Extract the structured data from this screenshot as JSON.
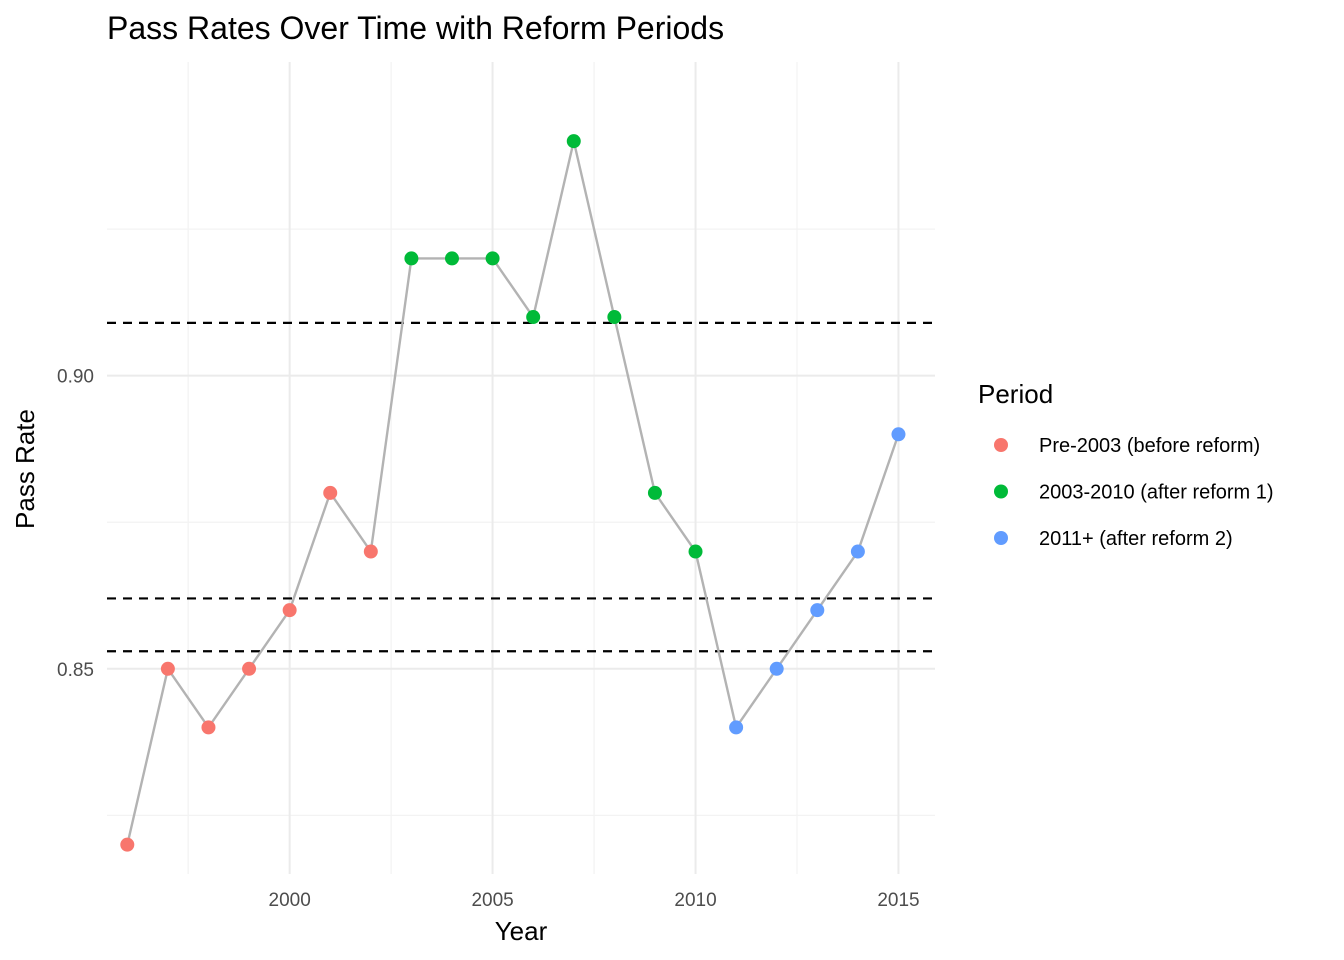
{
  "chart_data": {
    "type": "line",
    "title": "Pass Rates Over Time with Reform Periods",
    "xlabel": "Year",
    "ylabel": "Pass Rate",
    "xlim": [
      1995.5,
      2015.9
    ],
    "ylim": [
      0.815,
      0.9535
    ],
    "x_ticks": [
      2000,
      2005,
      2010,
      2015
    ],
    "x_tick_labels": [
      "2000",
      "2005",
      "2010",
      "2015"
    ],
    "y_ticks": [
      0.85,
      0.9
    ],
    "y_tick_labels": [
      "0.85",
      "0.90"
    ],
    "x_minor_ticks": [
      1997.5,
      2002.5,
      2007.5,
      2012.5
    ],
    "y_minor_ticks": [
      0.825,
      0.875,
      0.925
    ],
    "grid": true,
    "line_color": "#B3B3B3",
    "reference_lines": [
      {
        "orientation": "horizontal",
        "y": 0.853,
        "style": "dashed",
        "color": "#000000"
      },
      {
        "orientation": "horizontal",
        "y": 0.862,
        "style": "dashed",
        "color": "#000000"
      },
      {
        "orientation": "horizontal",
        "y": 0.909,
        "style": "dashed",
        "color": "#000000"
      }
    ],
    "legend": {
      "title": "Period",
      "placement": "right",
      "entries": [
        {
          "label": "Pre-2003 (before reform)",
          "color": "#F8766D"
        },
        {
          "label": "2003-2010 (after reform 1)",
          "color": "#00BA38"
        },
        {
          "label": "2011+ (after reform 2)",
          "color": "#619CFF"
        }
      ]
    },
    "points": [
      {
        "x": 1996,
        "y": 0.82,
        "period": 0
      },
      {
        "x": 1997,
        "y": 0.85,
        "period": 0
      },
      {
        "x": 1998,
        "y": 0.84,
        "period": 0
      },
      {
        "x": 1999,
        "y": 0.85,
        "period": 0
      },
      {
        "x": 2000,
        "y": 0.86,
        "period": 0
      },
      {
        "x": 2001,
        "y": 0.88,
        "period": 0
      },
      {
        "x": 2002,
        "y": 0.87,
        "period": 0
      },
      {
        "x": 2003,
        "y": 0.92,
        "period": 1
      },
      {
        "x": 2004,
        "y": 0.92,
        "period": 1
      },
      {
        "x": 2005,
        "y": 0.92,
        "period": 1
      },
      {
        "x": 2006,
        "y": 0.91,
        "period": 1
      },
      {
        "x": 2007,
        "y": 0.94,
        "period": 1
      },
      {
        "x": 2008,
        "y": 0.91,
        "period": 1
      },
      {
        "x": 2009,
        "y": 0.88,
        "period": 1
      },
      {
        "x": 2010,
        "y": 0.87,
        "period": 1
      },
      {
        "x": 2011,
        "y": 0.84,
        "period": 2
      },
      {
        "x": 2012,
        "y": 0.85,
        "period": 2
      },
      {
        "x": 2013,
        "y": 0.86,
        "period": 2
      },
      {
        "x": 2014,
        "y": 0.87,
        "period": 2
      },
      {
        "x": 2015,
        "y": 0.89,
        "period": 2
      }
    ]
  }
}
